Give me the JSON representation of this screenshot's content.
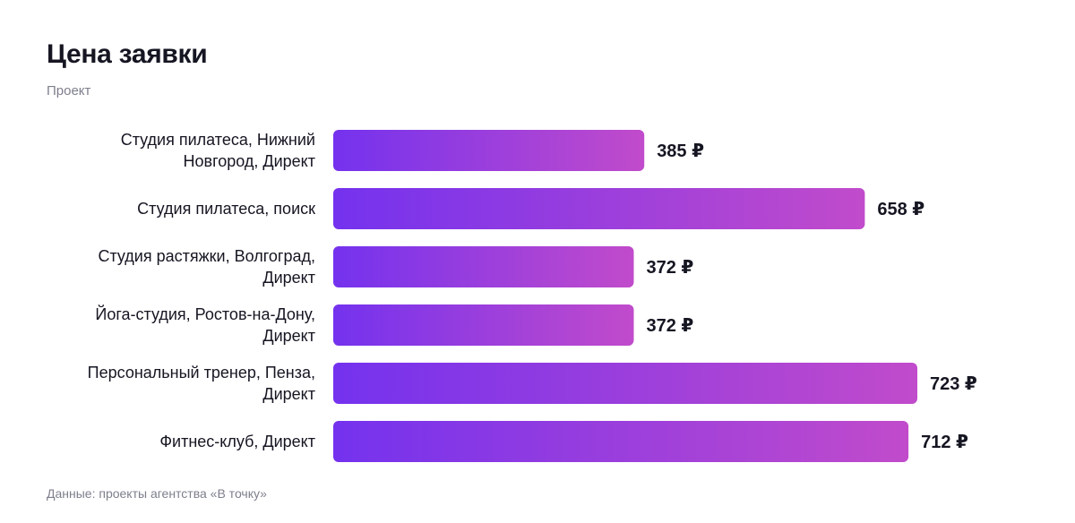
{
  "chart_data": {
    "type": "bar",
    "orientation": "horizontal",
    "title": "Цена заявки",
    "subtitle": "Проект",
    "source": "Данные: проекты агентства «В точку»",
    "categories": [
      [
        "Студия пилатеса, Нижний",
        "Новгород, Директ"
      ],
      [
        "Студия пилатеса, поиск"
      ],
      [
        "Студия растяжки, Волгоград,",
        "Директ"
      ],
      [
        "Йога-студия, Ростов-на-Дону,",
        "Директ"
      ],
      [
        "Персональный тренер, Пенза,",
        "Директ"
      ],
      [
        "Фитнес-клуб, Директ"
      ]
    ],
    "values": [
      385,
      658,
      372,
      372,
      723,
      712
    ],
    "value_suffix": " ₽",
    "xlim": [
      0,
      723
    ],
    "grid": false,
    "bar_gradient": [
      "#7432ee",
      "#c14bcb"
    ]
  }
}
